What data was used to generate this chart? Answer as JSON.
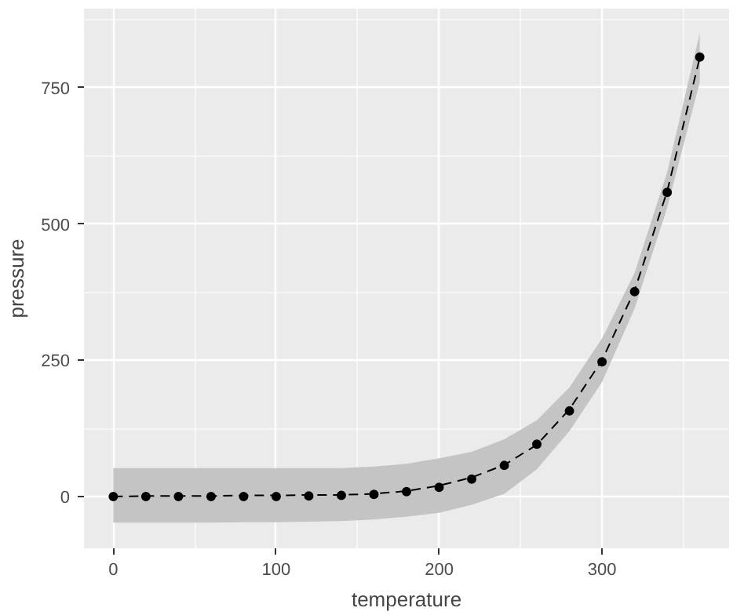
{
  "chart_data": {
    "type": "scatter",
    "xlabel": "temperature",
    "ylabel": "pressure",
    "x": [
      0,
      20,
      40,
      60,
      80,
      100,
      120,
      140,
      160,
      180,
      200,
      220,
      240,
      260,
      280,
      300,
      320,
      340,
      360
    ],
    "series": [
      {
        "color": "#000000",
        "marker": "circle",
        "values": [
          0,
          0,
          0,
          0,
          0,
          0,
          1,
          2,
          4,
          9,
          17,
          32,
          57,
          96,
          157,
          247,
          376,
          558,
          806
        ]
      },
      {
        "type": "line",
        "color": "#000000",
        "line_style": "dashed",
        "marker": "none",
        "x": [
          0,
          20,
          40,
          60,
          80,
          100,
          120,
          140,
          160,
          180,
          200,
          220,
          240,
          260,
          280,
          300,
          320,
          340,
          360
        ],
        "values": [
          0,
          1,
          1,
          1,
          2,
          2,
          3,
          3,
          5,
          10,
          20,
          35,
          58,
          95,
          160,
          250,
          378,
          560,
          805
        ],
        "lower": [
          -48,
          -48,
          -48,
          -48,
          -47,
          -47,
          -46,
          -45,
          -42,
          -37,
          -30,
          -15,
          5,
          50,
          120,
          210,
          345,
          530,
          760
        ],
        "upper": [
          52,
          52,
          52,
          52,
          52,
          52,
          52,
          52,
          55,
          60,
          70,
          82,
          105,
          140,
          200,
          290,
          410,
          595,
          850
        ]
      }
    ],
    "xlim": [
      -18,
      378
    ],
    "ylim": [
      -95,
      895
    ],
    "xticks": [
      0,
      100,
      200,
      300
    ],
    "yticks": [
      0,
      250,
      500,
      750
    ],
    "grid": true
  }
}
